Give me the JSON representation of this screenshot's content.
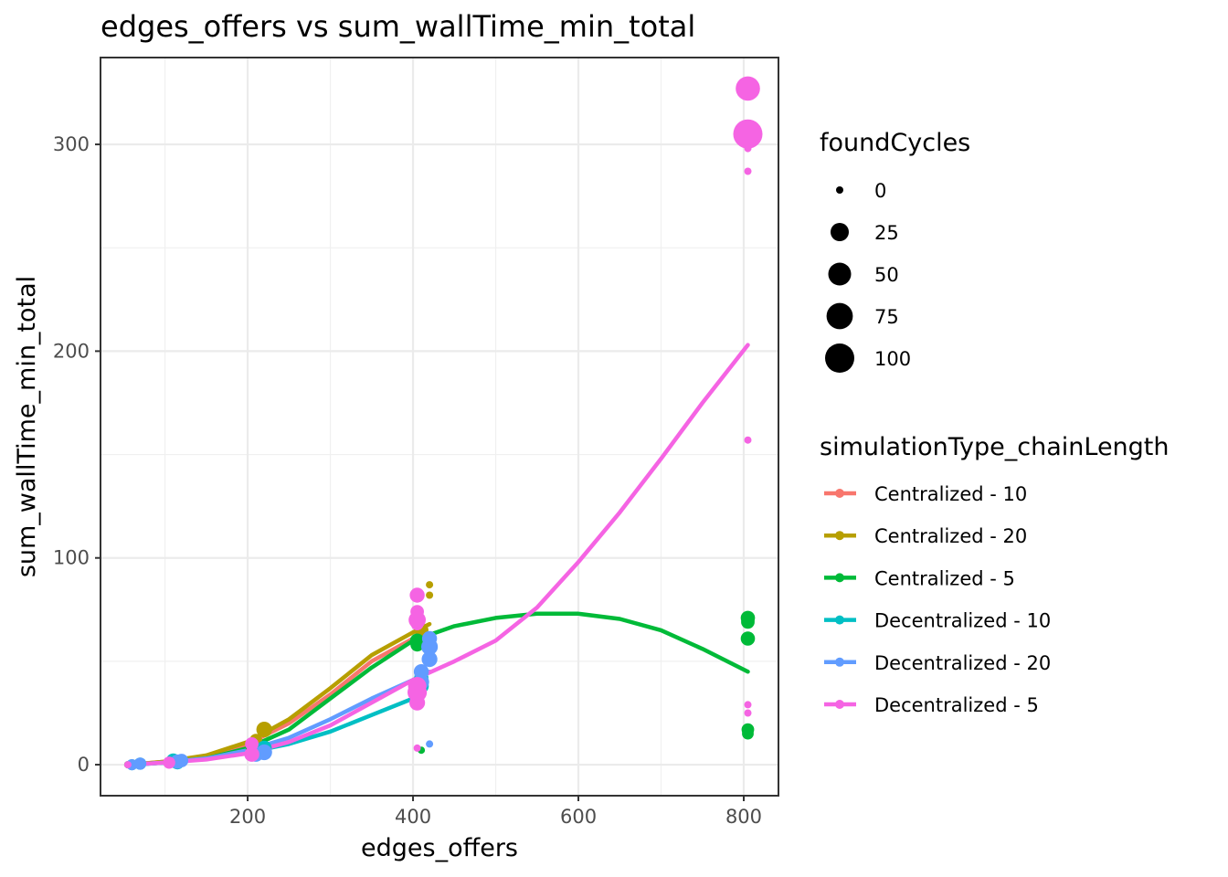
{
  "chart_data": {
    "type": "scatter",
    "title": "edges_offers  vs  sum_wallTime_min_total",
    "xlabel": "edges_offers",
    "ylabel": "sum_wallTime_min_total",
    "xlim": [
      22,
      842
    ],
    "ylim": [
      -15,
      342
    ],
    "x_ticks": [
      200,
      400,
      600,
      800
    ],
    "y_ticks": [
      0,
      100,
      200,
      300
    ],
    "x_tick_labels": [
      "200",
      "400",
      "600",
      "800"
    ],
    "y_tick_labels": [
      "0",
      "100",
      "200",
      "300"
    ],
    "grid": true,
    "legend_position": "right",
    "size_legend": {
      "title": "foundCycles",
      "values": [
        0,
        25,
        50,
        75,
        100
      ],
      "labels": [
        "0",
        "25",
        "50",
        "75",
        "100"
      ]
    },
    "color_legend": {
      "title": "simulationType_chainLength"
    },
    "series": [
      {
        "name": "Centralized - 10",
        "color": "#F8766D",
        "points": [
          [
            55,
            0,
            0
          ],
          [
            60,
            0.2,
            0
          ],
          [
            110,
            1,
            2
          ],
          [
            112,
            2,
            3
          ],
          [
            205,
            8,
            5
          ],
          [
            210,
            10,
            8
          ],
          [
            405,
            60,
            8
          ],
          [
            410,
            62,
            3
          ]
        ],
        "smooth": [
          [
            55,
            0
          ],
          [
            100,
            1.5
          ],
          [
            150,
            4
          ],
          [
            200,
            10
          ],
          [
            250,
            20
          ],
          [
            300,
            34
          ],
          [
            350,
            50
          ],
          [
            400,
            61
          ],
          [
            410,
            63
          ]
        ]
      },
      {
        "name": "Centralized - 20",
        "color": "#B79F00",
        "points": [
          [
            58,
            0,
            0
          ],
          [
            115,
            1.5,
            3
          ],
          [
            210,
            12,
            5
          ],
          [
            220,
            17,
            15
          ],
          [
            410,
            65,
            10
          ],
          [
            420,
            60,
            6
          ],
          [
            420,
            82,
            0
          ],
          [
            420,
            87,
            0
          ]
        ],
        "smooth": [
          [
            58,
            0
          ],
          [
            100,
            1.5
          ],
          [
            150,
            4.5
          ],
          [
            200,
            11
          ],
          [
            250,
            22
          ],
          [
            300,
            37
          ],
          [
            350,
            53
          ],
          [
            400,
            64
          ],
          [
            420,
            68
          ]
        ]
      },
      {
        "name": "Centralized - 5",
        "color": "#00BA38",
        "points": [
          [
            55,
            0,
            0
          ],
          [
            110,
            1,
            2
          ],
          [
            205,
            8,
            5
          ],
          [
            405,
            60,
            10
          ],
          [
            405,
            58,
            8
          ],
          [
            405,
            81,
            0
          ],
          [
            410,
            7,
            0
          ],
          [
            805,
            71,
            10
          ],
          [
            805,
            69,
            8
          ],
          [
            805,
            61,
            10
          ],
          [
            805,
            17,
            6
          ],
          [
            805,
            15,
            4
          ]
        ],
        "smooth": [
          [
            55,
            0
          ],
          [
            100,
            1
          ],
          [
            150,
            3
          ],
          [
            200,
            8
          ],
          [
            250,
            17
          ],
          [
            300,
            32
          ],
          [
            350,
            47
          ],
          [
            400,
            60
          ],
          [
            450,
            67
          ],
          [
            500,
            71
          ],
          [
            550,
            73
          ],
          [
            600,
            73
          ],
          [
            650,
            70.5
          ],
          [
            700,
            65
          ],
          [
            750,
            56
          ],
          [
            805,
            45
          ]
        ]
      },
      {
        "name": "Decentralized - 10",
        "color": "#00BFC4",
        "points": [
          [
            60,
            0,
            3
          ],
          [
            70,
            0.5,
            5
          ],
          [
            110,
            2,
            10
          ],
          [
            115,
            1,
            8
          ],
          [
            210,
            5,
            10
          ],
          [
            220,
            8,
            12
          ],
          [
            405,
            35,
            15
          ],
          [
            410,
            38,
            12
          ],
          [
            410,
            42,
            10
          ]
        ],
        "smooth": [
          [
            60,
            0
          ],
          [
            100,
            1
          ],
          [
            150,
            3
          ],
          [
            200,
            6
          ],
          [
            250,
            10
          ],
          [
            300,
            16
          ],
          [
            350,
            24
          ],
          [
            400,
            32
          ],
          [
            410,
            33
          ]
        ]
      },
      {
        "name": "Decentralized - 20",
        "color": "#619CFF",
        "points": [
          [
            60,
            0,
            3
          ],
          [
            70,
            0.5,
            5
          ],
          [
            115,
            1.5,
            10
          ],
          [
            120,
            2,
            8
          ],
          [
            210,
            5,
            12
          ],
          [
            220,
            6,
            15
          ],
          [
            410,
            40,
            15
          ],
          [
            410,
            45,
            12
          ],
          [
            420,
            51,
            15
          ],
          [
            420,
            57,
            18
          ],
          [
            420,
            61,
            12
          ],
          [
            420,
            10,
            0
          ]
        ],
        "smooth": [
          [
            60,
            0
          ],
          [
            100,
            1
          ],
          [
            150,
            3
          ],
          [
            200,
            7
          ],
          [
            250,
            13
          ],
          [
            300,
            22
          ],
          [
            350,
            32
          ],
          [
            400,
            41
          ],
          [
            420,
            45
          ]
        ]
      },
      {
        "name": "Decentralized - 5",
        "color": "#F564E3",
        "points": [
          [
            55,
            0,
            0
          ],
          [
            105,
            1,
            5
          ],
          [
            205,
            5,
            12
          ],
          [
            205,
            10,
            8
          ],
          [
            405,
            70,
            20
          ],
          [
            405,
            74,
            8
          ],
          [
            405,
            82,
            12
          ],
          [
            405,
            68,
            6
          ],
          [
            405,
            35,
            30
          ],
          [
            405,
            38,
            25
          ],
          [
            405,
            30,
            15
          ],
          [
            405,
            8,
            0
          ],
          [
            805,
            327,
            60
          ],
          [
            805,
            305,
            100
          ],
          [
            805,
            298,
            0
          ],
          [
            805,
            287,
            0
          ],
          [
            805,
            157,
            0
          ],
          [
            805,
            29,
            0
          ],
          [
            805,
            25,
            0
          ]
        ],
        "smooth": [
          [
            55,
            0
          ],
          [
            100,
            1
          ],
          [
            150,
            2.5
          ],
          [
            200,
            5.5
          ],
          [
            250,
            11
          ],
          [
            300,
            19
          ],
          [
            350,
            30
          ],
          [
            400,
            41
          ],
          [
            450,
            50
          ],
          [
            500,
            60
          ],
          [
            550,
            76
          ],
          [
            600,
            98
          ],
          [
            650,
            122
          ],
          [
            700,
            148
          ],
          [
            750,
            175
          ],
          [
            805,
            203
          ]
        ]
      }
    ]
  }
}
